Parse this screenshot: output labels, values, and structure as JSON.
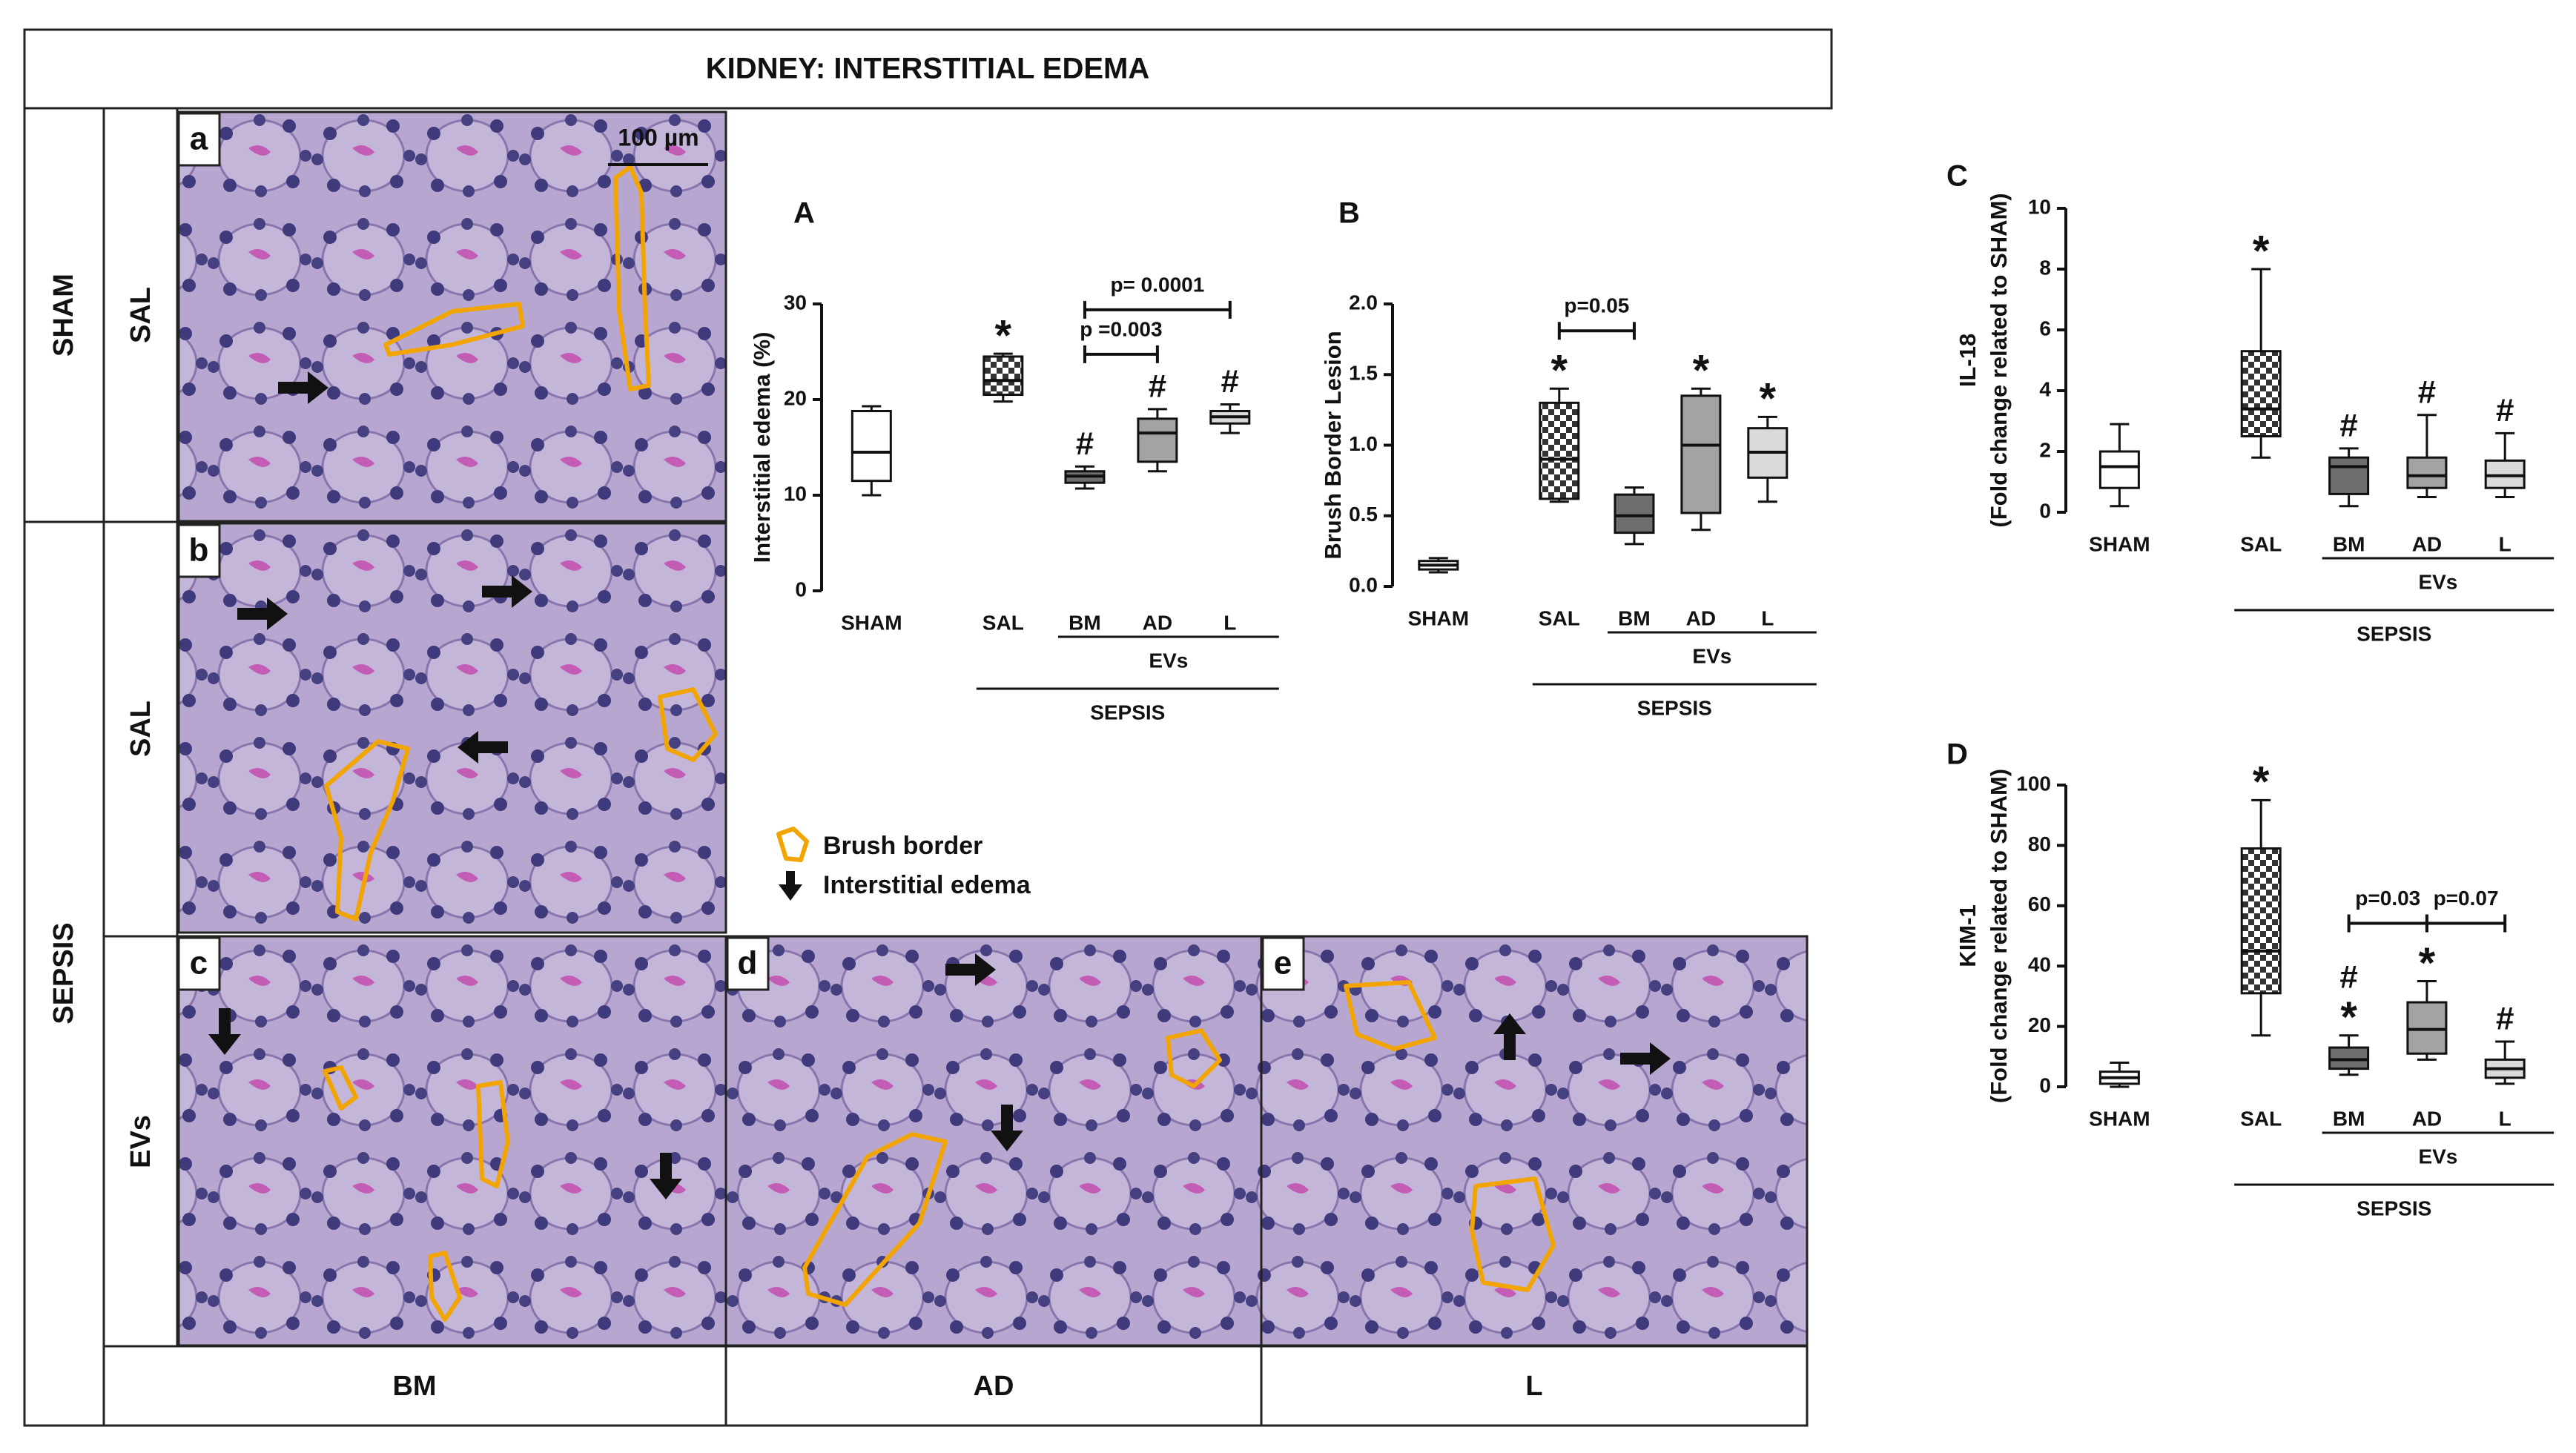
{
  "figure": {
    "title": "KIDNEY: INTERSTITIAL EDEMA",
    "rows": [
      "SHAM",
      "SEPSIS"
    ],
    "subrows": [
      "SAL",
      "SAL",
      "EVs"
    ],
    "columns": [
      "BM",
      "AD",
      "L"
    ]
  },
  "images": [
    {
      "label": "a",
      "scale_bar": "100 µm"
    },
    {
      "label": "b"
    },
    {
      "label": "c"
    },
    {
      "label": "d"
    },
    {
      "label": "e"
    }
  ],
  "legend": [
    "Brush border",
    "Interstitial edema"
  ],
  "chart_data": [
    {
      "type": "box",
      "panel": "A",
      "ylabel": [
        "Interstitial edema (%)"
      ],
      "categories": [
        "SHAM",
        "SAL",
        "BM",
        "AD",
        "L"
      ],
      "boxes": [
        {
          "min": 10,
          "q1": 11.5,
          "median": 14.5,
          "q3": 18.8,
          "max": 19.3
        },
        {
          "min": 19.8,
          "q1": 20.5,
          "median": 22,
          "q3": 24.5,
          "max": 24.8
        },
        {
          "min": 10.7,
          "q1": 11.3,
          "median": 12,
          "q3": 12.5,
          "max": 13
        },
        {
          "min": 12.5,
          "q1": 13.5,
          "median": 16.5,
          "q3": 18,
          "max": 19
        },
        {
          "min": 16.5,
          "q1": 17.5,
          "median": 18.2,
          "q3": 18.8,
          "max": 19.5
        }
      ],
      "fills": [
        "#ffffff",
        "checker",
        "#6e6e6e",
        "#a3a3a3",
        "#dadada"
      ],
      "ylim": [
        0,
        30
      ],
      "yticks": [
        0,
        10,
        20,
        30
      ],
      "annotations": [
        {
          "category": "SAL",
          "text": "*"
        },
        {
          "category": "BM",
          "text": "#"
        },
        {
          "category": "AD",
          "text": "#"
        },
        {
          "category": "L",
          "text": "#"
        }
      ],
      "brackets": [
        {
          "from": "BM",
          "to": "AD",
          "text": "p =0.003"
        },
        {
          "from": "BM",
          "to": "L",
          "text": "p= 0.0001"
        }
      ],
      "groups": [
        {
          "label": "EVs",
          "from": "BM",
          "to": "L"
        },
        {
          "label": "SEPSIS",
          "from": "SAL",
          "to": "L"
        }
      ]
    },
    {
      "type": "box",
      "panel": "B",
      "ylabel": [
        "Brush Border Lesion"
      ],
      "categories": [
        "SHAM",
        "SAL",
        "BM",
        "AD",
        "L"
      ],
      "boxes": [
        {
          "min": 0.1,
          "q1": 0.12,
          "median": 0.15,
          "q3": 0.18,
          "max": 0.2
        },
        {
          "min": 0.6,
          "q1": 0.62,
          "median": 0.9,
          "q3": 1.3,
          "max": 1.4
        },
        {
          "min": 0.3,
          "q1": 0.38,
          "median": 0.5,
          "q3": 0.65,
          "max": 0.7
        },
        {
          "min": 0.4,
          "q1": 0.52,
          "median": 1.0,
          "q3": 1.35,
          "max": 1.4
        },
        {
          "min": 0.6,
          "q1": 0.77,
          "median": 0.95,
          "q3": 1.12,
          "max": 1.2
        }
      ],
      "fills": [
        "#ffffff",
        "checker",
        "#6e6e6e",
        "#a3a3a3",
        "#dadada"
      ],
      "ylim": [
        0,
        2
      ],
      "yticks": [
        {
          "value": 0,
          "label": "0.0"
        },
        0.5,
        {
          "value": 1,
          "label": "1.0"
        },
        1.5,
        {
          "value": 2,
          "label": "2.0"
        }
      ],
      "annotations": [
        {
          "category": "SAL",
          "text": "*"
        },
        {
          "category": "AD",
          "text": "*"
        },
        {
          "category": "L",
          "text": "*"
        }
      ],
      "brackets": [
        {
          "from": "SAL",
          "to": "BM",
          "text": "p=0.05"
        }
      ],
      "groups": [
        {
          "label": "EVs",
          "from": "BM",
          "to": "L"
        },
        {
          "label": "SEPSIS",
          "from": "SAL",
          "to": "L"
        }
      ]
    },
    {
      "type": "box",
      "panel": "C",
      "ylabel": [
        "IL-18",
        "(Fold change related to SHAM)"
      ],
      "categories": [
        "SHAM",
        "SAL",
        "BM",
        "AD",
        "L"
      ],
      "boxes": [
        {
          "min": 0.2,
          "q1": 0.8,
          "median": 1.5,
          "q3": 2.0,
          "max": 2.9
        },
        {
          "min": 1.8,
          "q1": 2.5,
          "median": 3.4,
          "q3": 5.3,
          "max": 8.0
        },
        {
          "min": 0.2,
          "q1": 0.6,
          "median": 1.5,
          "q3": 1.8,
          "max": 2.1
        },
        {
          "min": 0.5,
          "q1": 0.8,
          "median": 1.2,
          "q3": 1.8,
          "max": 3.2
        },
        {
          "min": 0.5,
          "q1": 0.8,
          "median": 1.2,
          "q3": 1.7,
          "max": 2.6
        }
      ],
      "fills": [
        "#ffffff",
        "checker",
        "#6e6e6e",
        "#a3a3a3",
        "#dadada"
      ],
      "ylim": [
        0,
        10
      ],
      "yticks": [
        0,
        2,
        4,
        6,
        8,
        10
      ],
      "annotations": [
        {
          "category": "SAL",
          "text": "*"
        },
        {
          "category": "BM",
          "text": "#"
        },
        {
          "category": "AD",
          "text": "#"
        },
        {
          "category": "L",
          "text": "#"
        }
      ],
      "brackets": [],
      "groups": [
        {
          "label": "EVs",
          "from": "BM",
          "to": "L"
        },
        {
          "label": "SEPSIS",
          "from": "SAL",
          "to": "L"
        }
      ]
    },
    {
      "type": "box",
      "panel": "D",
      "ylabel": [
        "KIM-1",
        "(Fold change related to SHAM)"
      ],
      "categories": [
        "SHAM",
        "SAL",
        "BM",
        "AD",
        "L"
      ],
      "boxes": [
        {
          "min": 0,
          "q1": 1,
          "median": 3,
          "q3": 5,
          "max": 8
        },
        {
          "min": 17,
          "q1": 31,
          "median": 45,
          "q3": 79,
          "max": 95
        },
        {
          "min": 4,
          "q1": 6,
          "median": 9,
          "q3": 13,
          "max": 17
        },
        {
          "min": 9,
          "q1": 11,
          "median": 19,
          "q3": 28,
          "max": 35
        },
        {
          "min": 1,
          "q1": 3,
          "median": 6,
          "q3": 9,
          "max": 15
        }
      ],
      "fills": [
        "#ffffff",
        "checker",
        "#6e6e6e",
        "#a3a3a3",
        "#dadada"
      ],
      "ylim": [
        0,
        100
      ],
      "yticks": [
        0,
        20,
        40,
        60,
        80,
        100
      ],
      "annotations": [
        {
          "category": "SAL",
          "text": "*"
        },
        {
          "category": "BM",
          "text": "*"
        },
        {
          "category": "BM",
          "text": "#"
        },
        {
          "category": "AD",
          "text": "*"
        },
        {
          "category": "L",
          "text": "#"
        }
      ],
      "brackets": [
        {
          "from": "BM",
          "to": "AD",
          "text": "p=0.03"
        },
        {
          "from": "AD",
          "to": "L",
          "text": "p=0.07"
        }
      ],
      "groups": [
        {
          "label": "EVs",
          "from": "BM",
          "to": "L"
        },
        {
          "label": "SEPSIS",
          "from": "SAL",
          "to": "L"
        }
      ]
    }
  ]
}
